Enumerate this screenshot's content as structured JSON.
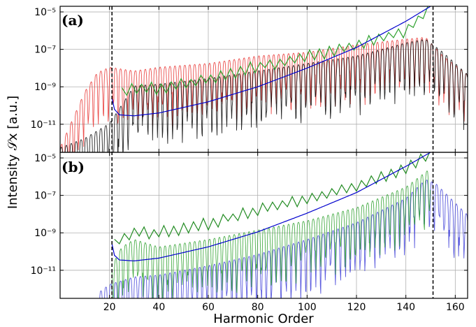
{
  "chart_data": {
    "type": "line",
    "xlabel": "Harmonic Order",
    "ylabel": "Intensity 𝒮x [a.u.]",
    "xlim": [
      0,
      165
    ],
    "y_scale": "log",
    "x_ticks": [
      "20",
      "40",
      "60",
      "80",
      "100",
      "120",
      "140",
      "160"
    ],
    "y_ticks": [
      "10⁻¹¹",
      "10⁻⁹",
      "10⁻⁷",
      "10⁻⁵"
    ],
    "grid": true,
    "vertical_markers": [
      21,
      151
    ],
    "panels": [
      {
        "label": "(a)",
        "ylim_log10": [
          -12.5,
          -4.7
        ],
        "series": [
          {
            "color": "#e8312f",
            "role": "oscillating spectrum",
            "x": [
              0,
              5,
              10,
              15,
              20,
              30,
              40,
              60,
              80,
              100,
              120,
              140,
              148,
              155,
              165
            ],
            "y_log10": [
              -12.5,
              -11,
              -9.5,
              -8.5,
              -8.2,
              -8.4,
              -8.2,
              -8.0,
              -7.6,
              -7.4,
              -7.0,
              -6.7,
              -6.6,
              -7.6,
              -8.6
            ]
          },
          {
            "color": "#000000",
            "role": "oscillating spectrum",
            "x": [
              0,
              10,
              20,
              30,
              40,
              60,
              80,
              100,
              120,
              140,
              148,
              155,
              165
            ],
            "y_log10": [
              -12.5,
              -12,
              -11.2,
              -9.2,
              -9.1,
              -8.8,
              -8.4,
              -8.0,
              -7.6,
              -6.9,
              -6.7,
              -7.4,
              -8.6
            ]
          },
          {
            "color": "#2ca02c",
            "role": "envelope",
            "x": [
              25,
              30,
              40,
              60,
              80,
              100,
              120,
              140,
              146,
              150
            ],
            "y_log10": [
              -9.3,
              -9.0,
              -9.1,
              -8.6,
              -7.9,
              -7.4,
              -6.8,
              -6.0,
              -5.3,
              -4.7
            ]
          },
          {
            "color": "#0000cd",
            "role": "smooth curve",
            "x": [
              21,
              22,
              24,
              30,
              40,
              60,
              80,
              100,
              120,
              140,
              150
            ],
            "y_log10": [
              -9.6,
              -10.2,
              -10.5,
              -10.55,
              -10.4,
              -9.8,
              -9.0,
              -8.0,
              -6.9,
              -5.5,
              -4.7
            ]
          }
        ]
      },
      {
        "label": "(b)",
        "ylim_log10": [
          -12.5,
          -4.7
        ],
        "series": [
          {
            "color": "#3f3fd8",
            "role": "oscillating spectrum",
            "x": [
              15,
              20,
              30,
              40,
              60,
              80,
              100,
              120,
              140,
              148,
              152,
              165
            ],
            "y_log10": [
              -12.5,
              -12.0,
              -11.6,
              -11.5,
              -11.0,
              -10.4,
              -9.6,
              -8.7,
              -7.4,
              -6.4,
              -6.6,
              -8.3
            ]
          },
          {
            "color": "#2ca02c",
            "role": "oscillating spectrum",
            "x": [
              21,
              25,
              30,
              40,
              60,
              80,
              100,
              120,
              140,
              150
            ],
            "y_log10": [
              -11.0,
              -10.0,
              -9.6,
              -10.0,
              -9.6,
              -9.1,
              -8.6,
              -7.9,
              -6.8,
              -5.8
            ]
          },
          {
            "color": "#228b22",
            "role": "envelope",
            "x": [
              22,
              25,
              30,
              40,
              60,
              80,
              100,
              120,
              140,
              146,
              150
            ],
            "y_log10": [
              -9.6,
              -9.3,
              -9.0,
              -9.0,
              -8.5,
              -7.8,
              -7.2,
              -6.5,
              -5.6,
              -5.1,
              -4.9
            ]
          },
          {
            "color": "#0000cd",
            "role": "smooth curve",
            "x": [
              21,
              22,
              24,
              30,
              40,
              60,
              80,
              100,
              120,
              140,
              150
            ],
            "y_log10": [
              -9.6,
              -10.2,
              -10.45,
              -10.5,
              -10.35,
              -9.75,
              -8.95,
              -7.95,
              -6.85,
              -5.45,
              -4.7
            ]
          }
        ]
      }
    ]
  }
}
